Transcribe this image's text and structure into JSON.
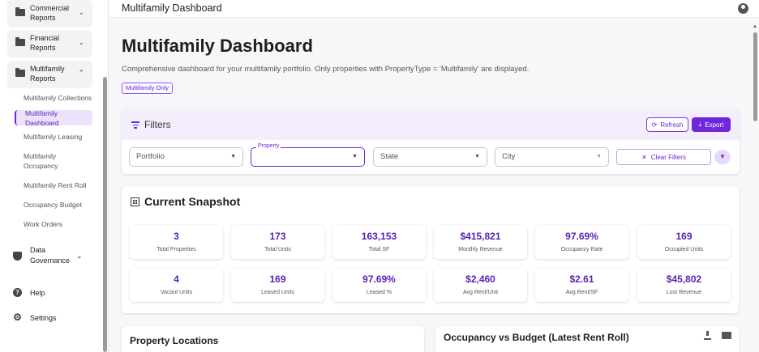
{
  "sidebar": {
    "groups": [
      {
        "label": "Commercial Reports",
        "chevron": "⌄"
      },
      {
        "label": "Financial Reports",
        "chevron": "⌄"
      },
      {
        "label": "Multifamily Reports",
        "chevron": "⌃"
      }
    ],
    "sub_items": [
      "Multifamily Collections",
      "Multifamily Dashboard",
      "Multifamily Leasing",
      "Multifamily Occupancy",
      "Multifamily Rent Roll",
      "Occupancy Budget",
      "Work Orders"
    ],
    "active_sub": "Multifamily Dashboard",
    "data_governance": "Data Governance",
    "help": "Help",
    "settings": "Settings"
  },
  "header": {
    "title": "Multifamily Dashboard"
  },
  "page": {
    "title": "Multifamily Dashboard",
    "description": "Comprehensive dashboard for your multifamily portfolio. Only properties with PropertyType = 'Multifamily' are displayed.",
    "chip": "Multifamily Only"
  },
  "filters": {
    "title": "Filters",
    "refresh": "Refresh",
    "export": "Export",
    "portfolio": "Portfolio",
    "property_label": "Property",
    "property_value": "",
    "state": "State",
    "city": "City",
    "clear": "Clear Filters"
  },
  "snapshot": {
    "title": "Current Snapshot",
    "metrics": [
      {
        "value": "3",
        "label": "Total Properties"
      },
      {
        "value": "173",
        "label": "Total Units"
      },
      {
        "value": "163,153",
        "label": "Total SF"
      },
      {
        "value": "$415,821",
        "label": "Monthly Revenue"
      },
      {
        "value": "97.69%",
        "label": "Occupancy Rate"
      },
      {
        "value": "169",
        "label": "Occupied Units"
      },
      {
        "value": "4",
        "label": "Vacant Units"
      },
      {
        "value": "169",
        "label": "Leased Units"
      },
      {
        "value": "97.69%",
        "label": "Leased %"
      },
      {
        "value": "$2,460",
        "label": "Avg Rent/Unit"
      },
      {
        "value": "$2.61",
        "label": "Avg Rent/SF"
      },
      {
        "value": "$45,802",
        "label": "Lost Revenue"
      }
    ]
  },
  "bottom": {
    "locations_title": "Property Locations",
    "occupancy_title": "Occupancy vs Budget (Latest Rent Roll)"
  },
  "colors": {
    "accent": "#6d28d9",
    "accent_light": "#f4eefc"
  },
  "icons": {
    "group": "folder-icon",
    "data_governance": "shield-icon",
    "help": "help-icon",
    "settings": "gear-icon"
  }
}
